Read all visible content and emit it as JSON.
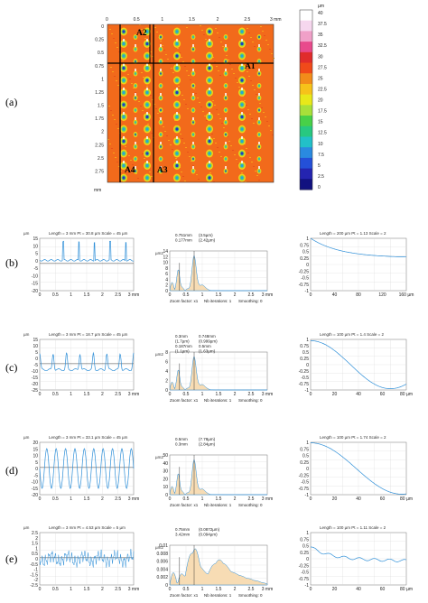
{
  "panel_labels": [
    "(a)",
    "(b)",
    "(c)",
    "(d)",
    "(e)"
  ],
  "map": {
    "x_ticks": [
      "0",
      "0.5",
      "1",
      "1.5",
      "2",
      "2.5",
      "3 mm"
    ],
    "y_ticks": [
      "0",
      "0.25",
      "0.5",
      "0.75",
      "1",
      "1.25",
      "1.5",
      "1.75",
      "2",
      "2.25",
      "2.5",
      "2.75"
    ],
    "axis_unit": "mm",
    "colorbar_unit": "µm",
    "colorbar_ticks": [
      "40",
      "37.5",
      "35",
      "32.5",
      "30",
      "27.5",
      "25",
      "22.5",
      "20",
      "17.5",
      "15",
      "12.5",
      "10",
      "7.5",
      "5",
      "2.5",
      "0"
    ],
    "line_labels": [
      "A1",
      "A2",
      "A3",
      "A4"
    ]
  },
  "rows": [
    {
      "profile": {
        "header": "Length = 3 mm  Pt = 30.8 µm  Scale = 45 µm",
        "unit": "µm",
        "y_ticks": [
          "15",
          "10",
          "5",
          "0",
          "-5",
          "-10",
          "-15",
          "-20"
        ],
        "x_ticks": [
          "0",
          "0.5",
          "1",
          "1.5",
          "2",
          "2.5",
          "3 mm"
        ]
      },
      "spectrum": {
        "unit": "µm2",
        "y_ticks": [
          "14",
          "12",
          "10",
          "8",
          "6",
          "4",
          "2",
          "0"
        ],
        "x_ticks": [
          "0",
          "0.5",
          "1",
          "1.5",
          "2",
          "2.5",
          "3 mm"
        ],
        "annotations": [
          "0.751mm",
          "(3.5µm)",
          "0.177mm",
          "(2.42µm)"
        ],
        "footer": [
          "Zoom factor: x1",
          "Nb iterations: 1",
          "Smoothing: 0"
        ]
      },
      "acf": {
        "header": "Length = 200 µm  Pt = 1.13  Scale = 2",
        "y_ticks": [
          "1",
          "0.75",
          "0.5",
          "0.25",
          "0",
          "-0.25",
          "-0.5",
          "-0.75",
          "-1"
        ],
        "x_ticks": [
          "0",
          "40",
          "80",
          "120",
          "160 µm"
        ]
      }
    },
    {
      "profile": {
        "header": "Length = 3 mm  Pt = 18.7 µm  Scale = 45 µm",
        "unit": "µm",
        "y_ticks": [
          "15",
          "10",
          "5",
          "0",
          "-5",
          "-10",
          "-15",
          "-20",
          "-25"
        ],
        "x_ticks": [
          "0",
          "0.5",
          "1",
          "1.5",
          "2",
          "2.5",
          "3 mm"
        ]
      },
      "spectrum": {
        "unit": "µm2",
        "y_ticks": [
          "8",
          "6",
          "4",
          "2",
          "0"
        ],
        "x_ticks": [
          "0",
          "0.5",
          "1",
          "1.5",
          "2",
          "2.5",
          "3 mm"
        ],
        "annotations": [
          "0.3mm",
          "0.748mm",
          "(1.7µm)",
          "(0.999µm)",
          "0.187mm",
          "0.5mm",
          "(1.1µm)",
          "(1.63µm)"
        ],
        "footer": [
          "Zoom factor: x1",
          "Nb iterations: 1",
          "Smoothing: 0"
        ]
      },
      "acf": {
        "header": "Length = 100 µm  Pt = 1.4  Scale = 2",
        "y_ticks": [
          "1",
          "0.75",
          "0.5",
          "0.25",
          "0",
          "-0.25",
          "-0.5",
          "-0.75",
          "-1"
        ],
        "x_ticks": [
          "0",
          "20",
          "40",
          "60",
          "80 µm"
        ]
      }
    },
    {
      "profile": {
        "header": "Length = 3 mm  Pt = 33.1 µm  Scale = 45 µm",
        "unit": "µm",
        "y_ticks": [
          "20",
          "15",
          "10",
          "5",
          "0",
          "-5",
          "-10",
          "-15",
          "-20"
        ],
        "x_ticks": [
          "0",
          "0.5",
          "1",
          "1.5",
          "2",
          "2.5",
          "3 mm"
        ]
      },
      "spectrum": {
        "unit": "µm2",
        "y_ticks": [
          "50",
          "40",
          "30",
          "20",
          "10",
          "0"
        ],
        "x_ticks": [
          "0",
          "0.5",
          "1",
          "1.5",
          "2",
          "2.5",
          "3 mm"
        ],
        "annotations": [
          "0.5mm",
          "(7.78µm)",
          "0.3mm",
          "(2.84µm)"
        ],
        "footer": [
          "Zoom factor: x1",
          "Nb iterations: 1",
          "Smoothing: 0"
        ]
      },
      "acf": {
        "header": "Length = 100 µm  Pt = 1.74  Scale = 2",
        "y_ticks": [
          "1",
          "0.75",
          "0.5",
          "0.25",
          "0",
          "-0.25",
          "-0.5",
          "-0.75",
          "-1"
        ],
        "x_ticks": [
          "0",
          "20",
          "40",
          "60",
          "80 µm"
        ]
      }
    },
    {
      "profile": {
        "header": "Length = 3 mm  Pt = 4.53 µm  Scale = 5 µm",
        "unit": "µm",
        "y_ticks": [
          "2.5",
          "2",
          "1.5",
          "1",
          "0.5",
          "0",
          "-0.5",
          "-1",
          "-1.5",
          "-2",
          "-2.5"
        ],
        "x_ticks": [
          "0",
          "0.5",
          "1",
          "1.5",
          "2",
          "2.5",
          "3 mm"
        ]
      },
      "spectrum": {
        "unit": "µm2",
        "y_ticks": [
          "0.01",
          "0.008",
          "0.006",
          "0.004",
          "0.002",
          "0"
        ],
        "x_ticks": [
          "0",
          "0.5",
          "1",
          "1.5",
          "2",
          "2.5",
          "3 mm"
        ],
        "annotations": [
          "0.75mm",
          "(0.0872µm)",
          "3.42mm",
          "(0.094µm)"
        ],
        "footer": [
          "Zoom factor: x1",
          "Nb iterations: 1",
          "Smoothing: 0"
        ]
      },
      "acf": {
        "header": "Length = 100 µm  Pt = 1.11  Scale = 2",
        "y_ticks": [
          "1",
          "0.75",
          "0.5",
          "0.25",
          "0",
          "-0.25",
          "-0.5",
          "-0.75",
          "-1"
        ],
        "x_ticks": [
          "0",
          "20",
          "40",
          "60",
          "80 µm"
        ]
      }
    }
  ]
}
